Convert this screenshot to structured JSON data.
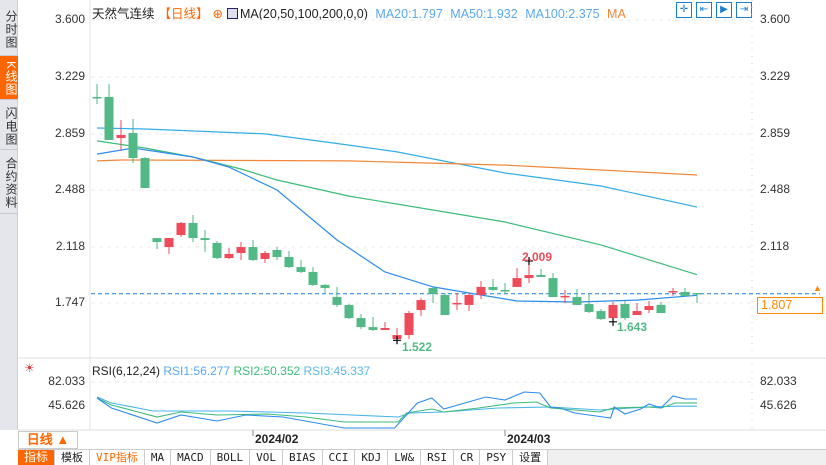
{
  "sidebar": {
    "tabs": [
      "分时图",
      "K线图",
      "闪电图",
      "合约资料"
    ],
    "active": 1
  },
  "legend": {
    "name": "天然气连续",
    "period": "【日线】",
    "ma_params": "MA(20,50,100,200,0,0)",
    "ma20": "MA20:1.797",
    "ma50": "MA50:1.932",
    "ma100": "MA100:2.375",
    "ma200": "MA"
  },
  "toolbar_icons": [
    "crosshair-icon",
    "zoom-range-icon",
    "zoom-in-icon",
    "scroll-end-icon"
  ],
  "price_axis": {
    "ticks": [
      "3.600",
      "3.229",
      "2.859",
      "2.488",
      "2.118",
      "1.747"
    ],
    "current": "1.807"
  },
  "annotations": {
    "high": "2.009",
    "low": "1.522",
    "low2": "1.643"
  },
  "rsi": {
    "title": "RSI(6,12,24)",
    "rsi1": "RSI1:56.277",
    "rsi2": "RSI2:50.352",
    "rsi3": "RSI3:45.337",
    "ticks": [
      "82.033",
      "45.626"
    ]
  },
  "dates": [
    "2024/02",
    "2024/03"
  ],
  "period_button": "日线 ▲",
  "bottom_tabs": [
    "指标",
    "模板",
    "VIP指标",
    "MA",
    "MACD",
    "BOLL",
    "VOL",
    "BIAS",
    "CCI",
    "KDJ",
    "LW&",
    "RSI",
    "CR",
    "PSY",
    "设置"
  ],
  "colors": {
    "up": "#ee4a5a",
    "down": "#52b986",
    "ma20": "#2d8cf0",
    "ma50": "#3dbb7a",
    "ma100": "#33aee8",
    "ma200": "#f0883a",
    "accent": "#ff6600"
  },
  "chart_data": {
    "type": "candlestick",
    "ohlc": [
      [
        3.096,
        3.096,
        3.181,
        3.05
      ],
      [
        3.096,
        2.814,
        3.181,
        2.814
      ],
      [
        2.827,
        2.847,
        2.945,
        2.742
      ],
      [
        2.86,
        2.696,
        2.952,
        2.663
      ],
      [
        2.696,
        2.5,
        2.703,
        2.5
      ],
      [
        2.172,
        2.146,
        2.172,
        2.1
      ],
      [
        2.113,
        2.172,
        2.172,
        2.068
      ],
      [
        2.192,
        2.271,
        2.277,
        2.179
      ],
      [
        2.271,
        2.172,
        2.323,
        2.146
      ],
      [
        2.172,
        2.159,
        2.225,
        2.081
      ],
      [
        2.14,
        2.041,
        2.153,
        2.035
      ],
      [
        2.041,
        2.068,
        2.107,
        2.035
      ],
      [
        2.074,
        2.113,
        2.146,
        2.028
      ],
      [
        2.113,
        2.028,
        2.159,
        2.022
      ],
      [
        2.035,
        2.074,
        2.087,
        2.009
      ],
      [
        2.094,
        2.048,
        2.113,
        2.028
      ],
      [
        2.048,
        1.982,
        2.087,
        1.975
      ],
      [
        1.982,
        1.95,
        2.028,
        1.943
      ],
      [
        1.95,
        1.865,
        1.982,
        1.858
      ],
      [
        1.865,
        1.845,
        1.871,
        1.806
      ],
      [
        1.786,
        1.734,
        1.852,
        1.721
      ],
      [
        1.734,
        1.648,
        1.74,
        1.642
      ],
      [
        1.648,
        1.589,
        1.675,
        1.576
      ],
      [
        1.589,
        1.57,
        1.655,
        1.563
      ],
      [
        1.57,
        1.583,
        1.622,
        1.57
      ],
      [
        1.511,
        1.537,
        1.583,
        1.522
      ],
      [
        1.537,
        1.681,
        1.694,
        1.511
      ],
      [
        1.701,
        1.766,
        1.779,
        1.662
      ],
      [
        1.845,
        1.806,
        1.852,
        1.747
      ],
      [
        1.799,
        1.668,
        1.812,
        1.668
      ],
      [
        1.74,
        1.747,
        1.812,
        1.701
      ],
      [
        1.734,
        1.799,
        1.812,
        1.694
      ],
      [
        1.799,
        1.852,
        1.891,
        1.773
      ],
      [
        1.852,
        1.832,
        1.904,
        1.825
      ],
      [
        1.832,
        1.825,
        1.878,
        1.806
      ],
      [
        1.852,
        1.91,
        1.976,
        1.852
      ],
      [
        1.91,
        1.93,
        2.009,
        1.878
      ],
      [
        1.93,
        1.917,
        1.969,
        1.917
      ],
      [
        1.91,
        1.786,
        1.943,
        1.786
      ],
      [
        1.786,
        1.793,
        1.832,
        1.747
      ],
      [
        1.786,
        1.734,
        1.838,
        1.734
      ],
      [
        1.74,
        1.688,
        1.812,
        1.681
      ],
      [
        1.694,
        1.642,
        1.707,
        1.635
      ],
      [
        1.648,
        1.734,
        1.753,
        1.643
      ],
      [
        1.74,
        1.648,
        1.76,
        1.635
      ],
      [
        1.668,
        1.694,
        1.747,
        1.668
      ],
      [
        1.701,
        1.727,
        1.76,
        1.681
      ],
      [
        1.734,
        1.681,
        1.753,
        1.681
      ],
      [
        1.819,
        1.825,
        1.845,
        1.793
      ],
      [
        1.819,
        1.793,
        1.845,
        1.786
      ],
      [
        1.812,
        1.807,
        1.812,
        1.747
      ]
    ],
    "ma20": [
      [
        0,
        2.722
      ],
      [
        3,
        2.762
      ],
      [
        8,
        2.703
      ],
      [
        11,
        2.637
      ],
      [
        15,
        2.487
      ],
      [
        18,
        2.29
      ],
      [
        20,
        2.159
      ],
      [
        24,
        1.95
      ],
      [
        28,
        1.852
      ],
      [
        31,
        1.812
      ],
      [
        35,
        1.76
      ],
      [
        40,
        1.753
      ],
      [
        45,
        1.766
      ],
      [
        50,
        1.797
      ]
    ],
    "ma50": [
      [
        0,
        2.808
      ],
      [
        4,
        2.762
      ],
      [
        8,
        2.703
      ],
      [
        12,
        2.624
      ],
      [
        15,
        2.552
      ],
      [
        21,
        2.447
      ],
      [
        34,
        2.277
      ],
      [
        42,
        2.127
      ],
      [
        50,
        1.932
      ]
    ],
    "ma100": [
      [
        0,
        2.893
      ],
      [
        4,
        2.886
      ],
      [
        14,
        2.854
      ],
      [
        21,
        2.781
      ],
      [
        25,
        2.736
      ],
      [
        34,
        2.598
      ],
      [
        42,
        2.513
      ],
      [
        50,
        2.375
      ]
    ],
    "ma200": [
      [
        0,
        2.677
      ],
      [
        2,
        2.683
      ],
      [
        21,
        2.677
      ],
      [
        34,
        2.65
      ],
      [
        42,
        2.618
      ],
      [
        50,
        2.585
      ]
    ],
    "ylim": [
      1.45,
      3.65
    ],
    "rsi1": [
      [
        0,
        57.8
      ],
      [
        1.2,
        42.6
      ],
      [
        5,
        19.8
      ],
      [
        7,
        32
      ],
      [
        10,
        22.9
      ],
      [
        12.4,
        32
      ],
      [
        15.5,
        28.9
      ],
      [
        20.6,
        12.2
      ],
      [
        24.8,
        12.2
      ],
      [
        26.7,
        50.2
      ],
      [
        27.9,
        57.8
      ],
      [
        28.9,
        41
      ],
      [
        32.4,
        59.3
      ],
      [
        34,
        54.7
      ],
      [
        35.6,
        66.9
      ],
      [
        36.9,
        65.3
      ],
      [
        37.8,
        44.1
      ],
      [
        38.6,
        42.6
      ],
      [
        39.8,
        35
      ],
      [
        41.6,
        30.4
      ],
      [
        42.8,
        27.4
      ],
      [
        43.1,
        44.1
      ],
      [
        44,
        33.5
      ],
      [
        45.3,
        41
      ],
      [
        46,
        48.7
      ],
      [
        47,
        42.6
      ],
      [
        48,
        60.8
      ],
      [
        49,
        56.3
      ],
      [
        50,
        56.3
      ]
    ],
    "rsi2": [
      [
        0,
        57.8
      ],
      [
        1.2,
        47.1
      ],
      [
        5,
        28.9
      ],
      [
        7,
        36.5
      ],
      [
        10,
        32
      ],
      [
        14.2,
        33.5
      ],
      [
        17.4,
        28.9
      ],
      [
        20.6,
        21.3
      ],
      [
        25.1,
        21.3
      ],
      [
        25.8,
        35
      ],
      [
        27.9,
        41
      ],
      [
        28.9,
        36.5
      ],
      [
        31.8,
        42.6
      ],
      [
        34.7,
        50.2
      ],
      [
        36.6,
        51.7
      ],
      [
        37.8,
        42.6
      ],
      [
        41.9,
        36.5
      ],
      [
        43,
        42.6
      ],
      [
        45.9,
        44.1
      ],
      [
        47,
        42.6
      ],
      [
        48.2,
        50.2
      ],
      [
        50,
        50.4
      ]
    ],
    "rsi3": [
      [
        0,
        59.3
      ],
      [
        1.2,
        50.2
      ],
      [
        4.7,
        38
      ],
      [
        11.1,
        38
      ],
      [
        17.4,
        35
      ],
      [
        25.1,
        28.9
      ],
      [
        26.1,
        35
      ],
      [
        28.9,
        36.5
      ],
      [
        33.4,
        42.6
      ],
      [
        37.8,
        44.1
      ],
      [
        41.9,
        39.5
      ],
      [
        45.9,
        44.1
      ],
      [
        48.2,
        45.3
      ],
      [
        50,
        45.3
      ]
    ]
  }
}
